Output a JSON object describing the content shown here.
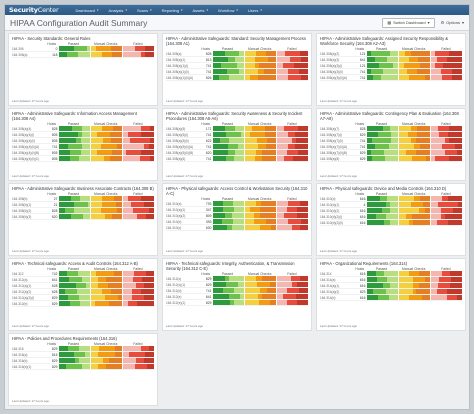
{
  "app": {
    "logo_bold": "Security",
    "logo_rest": "Center"
  },
  "nav": [
    "Dashboard",
    "Analysis",
    "Scans",
    "Reporting",
    "Assets",
    "Workflow",
    "Users"
  ],
  "page": {
    "title": "HIPAA Configuration Audit Summary",
    "switch_label": "Switch Dashboard",
    "options_label": "Options"
  },
  "columns": {
    "hosts": "Hosts",
    "passed": "Passed",
    "manual": "Manual Checks",
    "failed": "Failed"
  },
  "updated": "Last Updated: 17 hours ago",
  "panels": [
    {
      "title": "HIPAA - Security Standards: General Rules",
      "rows": [
        {
          "label": "164.306",
          "hosts": "0"
        },
        {
          "label": "164.306(a)",
          "hosts": "118"
        }
      ]
    },
    {
      "title": "HIPAA - Administrative Safeguards: Standard: Security Management Process (164.308 A1)",
      "rows": [
        {
          "label": "164.308(a)",
          "hosts": "828"
        },
        {
          "label": "164.308(a)(1)",
          "hosts": "813"
        },
        {
          "label": "164.308(a)(1)(i)",
          "hosts": "741"
        },
        {
          "label": "164.308(a)(1)(ii)",
          "hosts": "741"
        },
        {
          "label": "164.308(a)(1)(ii)(A)",
          "hosts": "826"
        }
      ]
    },
    {
      "title": "HIPAA - Administrative Safeguards: Assigned Security Responsibility & Workforce Security (164.308 A2-A3)",
      "rows": [
        {
          "label": "164.308(a)(2)",
          "hosts": "121"
        },
        {
          "label": "164.308(a)(3)",
          "hosts": "641"
        },
        {
          "label": "164.308(a)(3)(i)",
          "hosts": "121"
        },
        {
          "label": "164.308(a)(3)(ii)",
          "hosts": "741"
        },
        {
          "label": "164.308(a)(3)(ii)(A)",
          "hosts": "741"
        }
      ]
    },
    {
      "title": "HIPAA - Administrative Safeguards: Information Access Management (164.308 A4)",
      "rows": [
        {
          "label": "164.308(a)(4)",
          "hosts": "828"
        },
        {
          "label": "164.308(a)(4)(i)",
          "hosts": "805"
        },
        {
          "label": "164.308(a)(4)(ii)",
          "hosts": "805"
        },
        {
          "label": "164.308(a)(4)(ii)(A)",
          "hosts": "741"
        },
        {
          "label": "164.308(a)(4)(ii)(B)",
          "hosts": "805"
        },
        {
          "label": "164.308(a)(4)(ii)(C)",
          "hosts": "805"
        }
      ]
    },
    {
      "title": "HIPAA - Administrative Safeguards: Security Awareness & Security Incident Procedures (164.308 A5-A6)",
      "rows": [
        {
          "label": "164.308(a)(5)",
          "hosts": "171"
        },
        {
          "label": "164.308(a)(5)(i)",
          "hosts": "741"
        },
        {
          "label": "164.308(a)(5)(ii)",
          "hosts": "622"
        },
        {
          "label": "164.308(a)(5)(ii)(A)",
          "hosts": "741"
        },
        {
          "label": "164.308(a)(5)(ii)(B)",
          "hosts": "620"
        },
        {
          "label": "164.308(a)(6)",
          "hosts": "741"
        }
      ]
    },
    {
      "title": "HIPAA - Administrative Safeguards: Contingency Plan & Evaluation (164.308 A7-A8)",
      "rows": [
        {
          "label": "164.308(a)(7)",
          "hosts": "828"
        },
        {
          "label": "164.308(a)(7)(i)",
          "hosts": "829"
        },
        {
          "label": "164.308(a)(7)(ii)",
          "hosts": "741"
        },
        {
          "label": "164.308(a)(7)(ii)(A)",
          "hosts": "741"
        },
        {
          "label": "164.308(a)(7)(ii)(B)",
          "hosts": "829"
        },
        {
          "label": "164.308(a)(8)",
          "hosts": "829"
        }
      ]
    },
    {
      "title": "HIPAA - Administrative Safeguards: Business Associate Contracts (164.308 B)",
      "rows": [
        {
          "label": "164.308(b)",
          "hosts": "27"
        },
        {
          "label": "164.308(b)(1)",
          "hosts": "21"
        },
        {
          "label": "164.308(b)(2)",
          "hosts": "828"
        },
        {
          "label": "164.308(b)(3)",
          "hosts": "820"
        }
      ]
    },
    {
      "title": "HIPAA - Physical safeguards: Access Control & Workstation Security (164.310 A-C)",
      "rows": [
        {
          "label": "164.310(a)",
          "hosts": "793"
        },
        {
          "label": "164.310(a)(1)",
          "hosts": "347"
        },
        {
          "label": "164.310(a)(2)",
          "hosts": "809"
        },
        {
          "label": "164.310(b)",
          "hosts": "393"
        },
        {
          "label": "164.310(c)",
          "hosts": "630"
        }
      ]
    },
    {
      "title": "HIPAA - Physical safeguards: Device and Media Controls (164.310 D)",
      "rows": [
        {
          "label": "164.310(d)",
          "hosts": "616"
        },
        {
          "label": "164.310(d)(1)",
          "hosts": "4"
        },
        {
          "label": "164.310(d)(2)",
          "hosts": "616"
        },
        {
          "label": "164.310(d)(2)(i)",
          "hosts": "616"
        },
        {
          "label": "164.310(d)(2)(ii)",
          "hosts": "616"
        }
      ]
    },
    {
      "title": "HIPAA - Technical safeguards: Access & Audit Controls (164.312 A-B)",
      "rows": [
        {
          "label": "164.312",
          "hosts": "742"
        },
        {
          "label": "164.312(a)",
          "hosts": "641"
        },
        {
          "label": "164.312(a)(1)",
          "hosts": "628"
        },
        {
          "label": "164.312(a)(2)",
          "hosts": "628"
        },
        {
          "label": "164.312(a)(2)(i)",
          "hosts": "829"
        },
        {
          "label": "164.312(b)",
          "hosts": "829"
        }
      ]
    },
    {
      "title": "HIPAA - Technical safeguards: Integrity, Authentication, & Transmission Security (164.312 C-E)",
      "rows": [
        {
          "label": "164.312(c)",
          "hosts": "829"
        },
        {
          "label": "164.312(c)(1)",
          "hosts": "829"
        },
        {
          "label": "164.312(d)",
          "hosts": "741"
        },
        {
          "label": "164.312(e)",
          "hosts": "641"
        },
        {
          "label": "164.312(e)(1)",
          "hosts": "829"
        }
      ]
    },
    {
      "title": "HIPAA - Organizational Requirements (164.314)",
      "rows": [
        {
          "label": "164.314",
          "hosts": "616"
        },
        {
          "label": "164.314(a)",
          "hosts": "616"
        },
        {
          "label": "164.314(a)(1)",
          "hosts": "616"
        },
        {
          "label": "164.314(a)(2)",
          "hosts": "823"
        },
        {
          "label": "164.314(b)",
          "hosts": "616"
        }
      ]
    },
    {
      "title": "HIPAA - Policies and Procedures Requirements (164.316)",
      "rows": [
        {
          "label": "164.316",
          "hosts": "829"
        },
        {
          "label": "164.316(a)",
          "hosts": "815"
        },
        {
          "label": "164.316(b)",
          "hosts": "829"
        },
        {
          "label": "164.316(b)(1)",
          "hosts": "829"
        }
      ]
    }
  ],
  "grid_placement": [
    [
      0,
      0,
      1
    ],
    [
      1,
      0,
      2
    ],
    [
      2,
      0,
      2
    ],
    [
      0,
      1,
      2
    ],
    [
      1,
      2,
      2
    ],
    [
      2,
      2,
      2
    ],
    [
      0,
      3,
      1
    ],
    [
      1,
      4,
      2
    ],
    [
      2,
      4,
      2
    ],
    [
      0,
      4,
      2
    ],
    [
      1,
      6,
      2
    ],
    [
      2,
      6,
      2
    ],
    [
      0,
      6,
      2
    ]
  ]
}
